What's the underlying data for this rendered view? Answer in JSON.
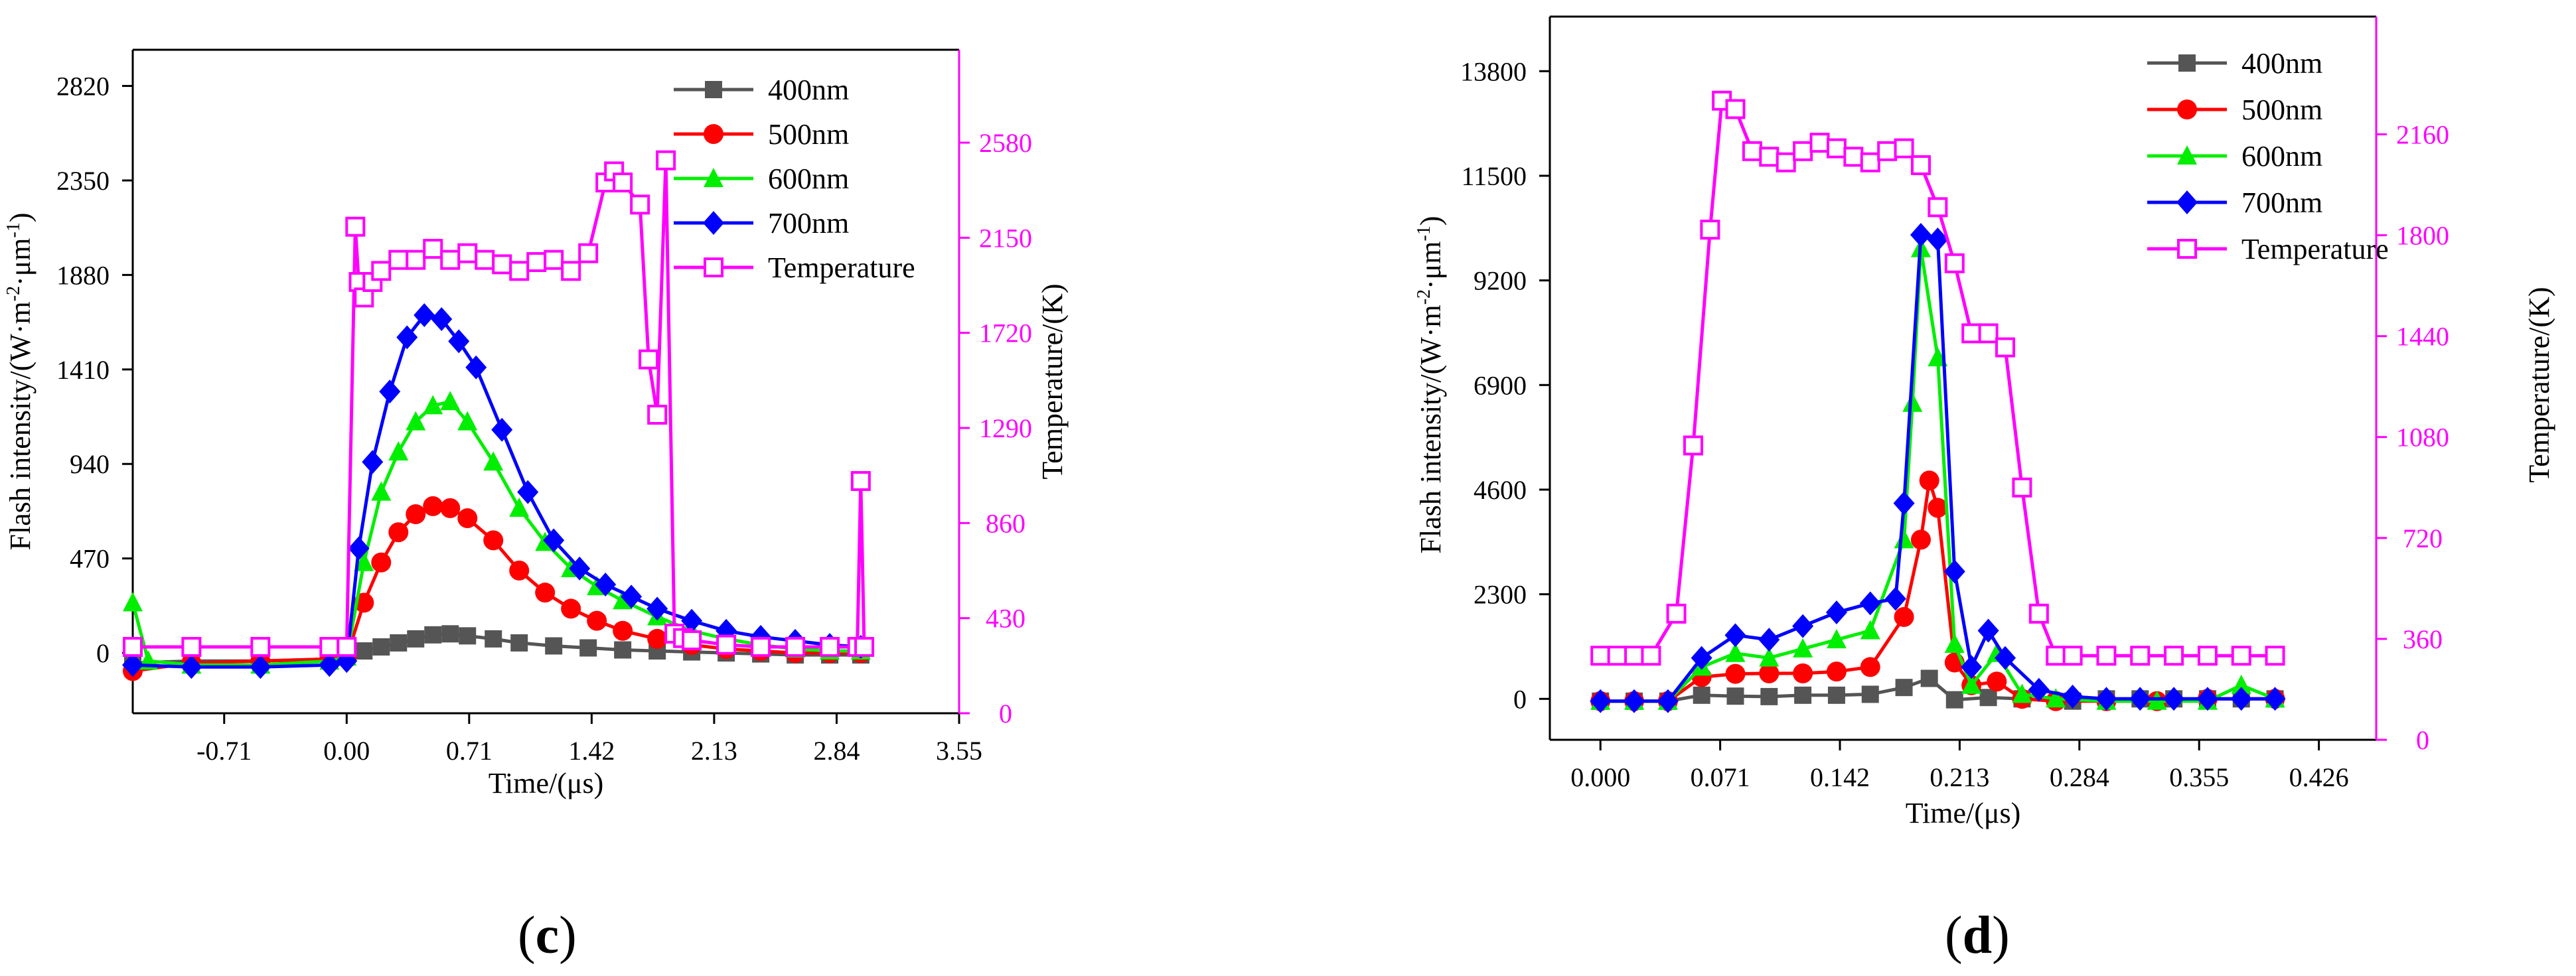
{
  "chart_data": [
    {
      "panel": "c",
      "type": "line",
      "xlabel": "Time/(μs)",
      "ylabel": "Flash intensity/(W·m",
      "ylabel_sup1": "-2",
      "ylabel_mid": "·μm",
      "ylabel_sup2": "-1",
      "ylabel_end": ")",
      "y2label": "Temperature/(K)",
      "xlim": [
        -1.24,
        3.55
      ],
      "ylim": [
        -300,
        3000
      ],
      "y2lim": [
        0,
        3000
      ],
      "xticks": [
        "-0.71",
        "0.00",
        "0.71",
        "1.42",
        "2.13",
        "2.84",
        "3.55"
      ],
      "xtick_values": [
        -0.71,
        0.0,
        0.71,
        1.42,
        2.13,
        2.84,
        3.55
      ],
      "yticks": [
        "0",
        "470",
        "940",
        "1410",
        "1880",
        "2350",
        "2820"
      ],
      "ytick_values": [
        0,
        470,
        940,
        1410,
        1880,
        2350,
        2820
      ],
      "y2ticks": [
        "0",
        "430",
        "860",
        "1290",
        "1720",
        "2150",
        "2580"
      ],
      "y2tick_values": [
        0,
        430,
        860,
        1290,
        1720,
        2150,
        2580
      ],
      "legend_position": "top-right",
      "series": [
        {
          "name": "400nm",
          "color": "#555555",
          "marker": "square",
          "axis": "left",
          "x": [
            -1.24,
            -0.9,
            -0.5,
            -0.1,
            0.0,
            0.1,
            0.2,
            0.3,
            0.4,
            0.5,
            0.6,
            0.7,
            0.85,
            1.0,
            1.2,
            1.4,
            1.6,
            1.8,
            2.0,
            2.2,
            2.4,
            2.6,
            2.8,
            2.98
          ],
          "y": [
            -50,
            -40,
            -40,
            -30,
            -20,
            10,
            30,
            50,
            70,
            90,
            95,
            85,
            70,
            50,
            35,
            25,
            15,
            10,
            5,
            0,
            -5,
            -10,
            -10,
            -10
          ]
        },
        {
          "name": "500nm",
          "color": "#ff0000",
          "marker": "circle",
          "axis": "left",
          "x": [
            -1.24,
            -0.9,
            -0.5,
            -0.1,
            0.0,
            0.1,
            0.2,
            0.3,
            0.4,
            0.5,
            0.6,
            0.7,
            0.85,
            1.0,
            1.15,
            1.3,
            1.45,
            1.6,
            1.8,
            2.0,
            2.2,
            2.4,
            2.6,
            2.8,
            2.98
          ],
          "y": [
            -90,
            -50,
            -40,
            -30,
            -20,
            250,
            450,
            600,
            690,
            730,
            720,
            670,
            560,
            410,
            300,
            220,
            160,
            110,
            70,
            40,
            20,
            10,
            0,
            0,
            0
          ]
        },
        {
          "name": "600nm",
          "color": "#00ee00",
          "marker": "triangle",
          "axis": "left",
          "x": [
            -1.24,
            -1.15,
            -0.9,
            -0.5,
            -0.1,
            0.0,
            0.1,
            0.2,
            0.3,
            0.4,
            0.5,
            0.6,
            0.7,
            0.85,
            1.0,
            1.15,
            1.3,
            1.45,
            1.6,
            1.8,
            2.0,
            2.2,
            2.4,
            2.6,
            2.8,
            2.98
          ],
          "y": [
            250,
            -40,
            -60,
            -60,
            -40,
            -20,
            450,
            800,
            1000,
            1150,
            1230,
            1250,
            1150,
            950,
            720,
            550,
            420,
            330,
            260,
            180,
            110,
            70,
            40,
            20,
            10,
            10
          ]
        },
        {
          "name": "700nm",
          "color": "#0000ff",
          "marker": "diamond",
          "axis": "left",
          "x": [
            -1.24,
            -0.9,
            -0.5,
            -0.1,
            0.0,
            0.07,
            0.15,
            0.25,
            0.35,
            0.45,
            0.55,
            0.65,
            0.75,
            0.9,
            1.05,
            1.2,
            1.35,
            1.5,
            1.65,
            1.8,
            2.0,
            2.2,
            2.4,
            2.6,
            2.8,
            2.98
          ],
          "y": [
            -60,
            -70,
            -70,
            -60,
            -40,
            520,
            950,
            1300,
            1570,
            1680,
            1660,
            1550,
            1420,
            1110,
            800,
            560,
            420,
            340,
            280,
            220,
            160,
            110,
            80,
            60,
            40,
            30
          ]
        },
        {
          "name": "Temperature",
          "color": "#ff00ff",
          "marker": "open-square",
          "axis": "right",
          "x": [
            -1.24,
            -0.9,
            -0.5,
            -0.1,
            0.0,
            0.05,
            0.07,
            0.1,
            0.15,
            0.2,
            0.3,
            0.4,
            0.5,
            0.6,
            0.7,
            0.8,
            0.9,
            1.0,
            1.1,
            1.2,
            1.3,
            1.4,
            1.5,
            1.55,
            1.6,
            1.7,
            1.75,
            1.8,
            1.85,
            1.9,
            1.95,
            2.0,
            2.2,
            2.4,
            2.6,
            2.8,
            2.96,
            2.98,
            3.0
          ],
          "y": [
            300,
            300,
            300,
            300,
            300,
            2200,
            1950,
            1880,
            1950,
            2000,
            2050,
            2050,
            2100,
            2050,
            2080,
            2050,
            2030,
            2000,
            2040,
            2050,
            2000,
            2080,
            2400,
            2450,
            2400,
            2300,
            1600,
            1350,
            2500,
            360,
            340,
            330,
            310,
            300,
            300,
            300,
            300,
            1050,
            300
          ]
        }
      ]
    },
    {
      "panel": "d",
      "type": "line",
      "xlabel": "Time/(μs)",
      "ylabel": "Flash intensity/(W·m",
      "ylabel_sup1": "-2",
      "ylabel_mid": "·μm",
      "ylabel_sup2": "-1",
      "ylabel_end": ")",
      "y2label": "Temperature/(K)",
      "xlim": [
        -0.03,
        0.46
      ],
      "ylim": [
        -900,
        15000
      ],
      "y2lim": [
        0,
        2580
      ],
      "xticks": [
        "0.000",
        "0.071",
        "0.142",
        "0.213",
        "0.284",
        "0.355",
        "0.426"
      ],
      "xtick_values": [
        0.0,
        0.071,
        0.142,
        0.213,
        0.284,
        0.355,
        0.426
      ],
      "yticks": [
        "0",
        "2300",
        "4600",
        "6900",
        "9200",
        "11500",
        "13800"
      ],
      "ytick_values": [
        0,
        2300,
        4600,
        6900,
        9200,
        11500,
        13800
      ],
      "y2ticks": [
        "0",
        "360",
        "720",
        "1080",
        "1440",
        "1800",
        "2160"
      ],
      "y2tick_values": [
        0,
        360,
        720,
        1080,
        1440,
        1800,
        2160
      ],
      "legend_position": "top-right",
      "series": [
        {
          "name": "400nm",
          "color": "#555555",
          "marker": "square",
          "axis": "left",
          "x": [
            0.0,
            0.02,
            0.04,
            0.06,
            0.08,
            0.1,
            0.12,
            0.14,
            0.16,
            0.18,
            0.195,
            0.21,
            0.23,
            0.25,
            0.28,
            0.3,
            0.32,
            0.34,
            0.36,
            0.38,
            0.4
          ],
          "y": [
            -50,
            -50,
            -50,
            80,
            60,
            50,
            80,
            80,
            100,
            250,
            450,
            -20,
            30,
            0,
            -50,
            0,
            0,
            0,
            0,
            0,
            0
          ]
        },
        {
          "name": "500nm",
          "color": "#ff0000",
          "marker": "circle",
          "axis": "left",
          "x": [
            0.0,
            0.02,
            0.04,
            0.06,
            0.08,
            0.1,
            0.12,
            0.14,
            0.16,
            0.18,
            0.19,
            0.195,
            0.2,
            0.21,
            0.22,
            0.235,
            0.25,
            0.27,
            0.3,
            0.33,
            0.36,
            0.4
          ],
          "y": [
            -50,
            -50,
            -50,
            480,
            550,
            560,
            560,
            600,
            700,
            1800,
            3500,
            4800,
            4200,
            800,
            300,
            380,
            0,
            -50,
            -50,
            -50,
            0,
            0
          ]
        },
        {
          "name": "600nm",
          "color": "#00ee00",
          "marker": "triangle",
          "axis": "left",
          "x": [
            0.0,
            0.02,
            0.04,
            0.06,
            0.08,
            0.1,
            0.12,
            0.14,
            0.16,
            0.18,
            0.185,
            0.19,
            0.2,
            0.21,
            0.22,
            0.235,
            0.25,
            0.27,
            0.3,
            0.33,
            0.36,
            0.38,
            0.4
          ],
          "y": [
            -50,
            -50,
            -50,
            700,
            1000,
            900,
            1100,
            1300,
            1500,
            3500,
            6500,
            9900,
            7500,
            1200,
            300,
            1000,
            100,
            0,
            -50,
            -50,
            -50,
            300,
            0
          ]
        },
        {
          "name": "700nm",
          "color": "#0000ff",
          "marker": "diamond",
          "axis": "left",
          "x": [
            0.0,
            0.02,
            0.04,
            0.06,
            0.08,
            0.1,
            0.12,
            0.14,
            0.16,
            0.175,
            0.18,
            0.19,
            0.2,
            0.21,
            0.22,
            0.23,
            0.24,
            0.26,
            0.28,
            0.3,
            0.32,
            0.34,
            0.36,
            0.38,
            0.4
          ],
          "y": [
            -50,
            -50,
            -50,
            900,
            1400,
            1300,
            1600,
            1900,
            2100,
            2200,
            4300,
            10200,
            10100,
            2800,
            700,
            1500,
            900,
            200,
            50,
            0,
            0,
            0,
            0,
            0,
            0
          ]
        },
        {
          "name": "Temperature",
          "color": "#ff00ff",
          "marker": "open-square",
          "axis": "right",
          "x": [
            0.0,
            0.01,
            0.02,
            0.03,
            0.045,
            0.055,
            0.065,
            0.072,
            0.08,
            0.09,
            0.1,
            0.11,
            0.12,
            0.13,
            0.14,
            0.15,
            0.16,
            0.17,
            0.18,
            0.19,
            0.2,
            0.21,
            0.22,
            0.23,
            0.24,
            0.25,
            0.26,
            0.27,
            0.28,
            0.3,
            0.32,
            0.34,
            0.36,
            0.38,
            0.4
          ],
          "y": [
            300,
            300,
            300,
            300,
            450,
            1050,
            1820,
            2280,
            2250,
            2100,
            2080,
            2060,
            2100,
            2130,
            2110,
            2080,
            2060,
            2100,
            2110,
            2050,
            1900,
            1700,
            1450,
            1450,
            1400,
            900,
            450,
            300,
            300,
            300,
            300,
            300,
            300,
            300,
            300
          ]
        }
      ]
    }
  ],
  "panel_labels": {
    "c_open": "(",
    "c_letter": "c",
    "c_close": ")",
    "d_open": "(",
    "d_letter": "d",
    "d_close": ")"
  }
}
